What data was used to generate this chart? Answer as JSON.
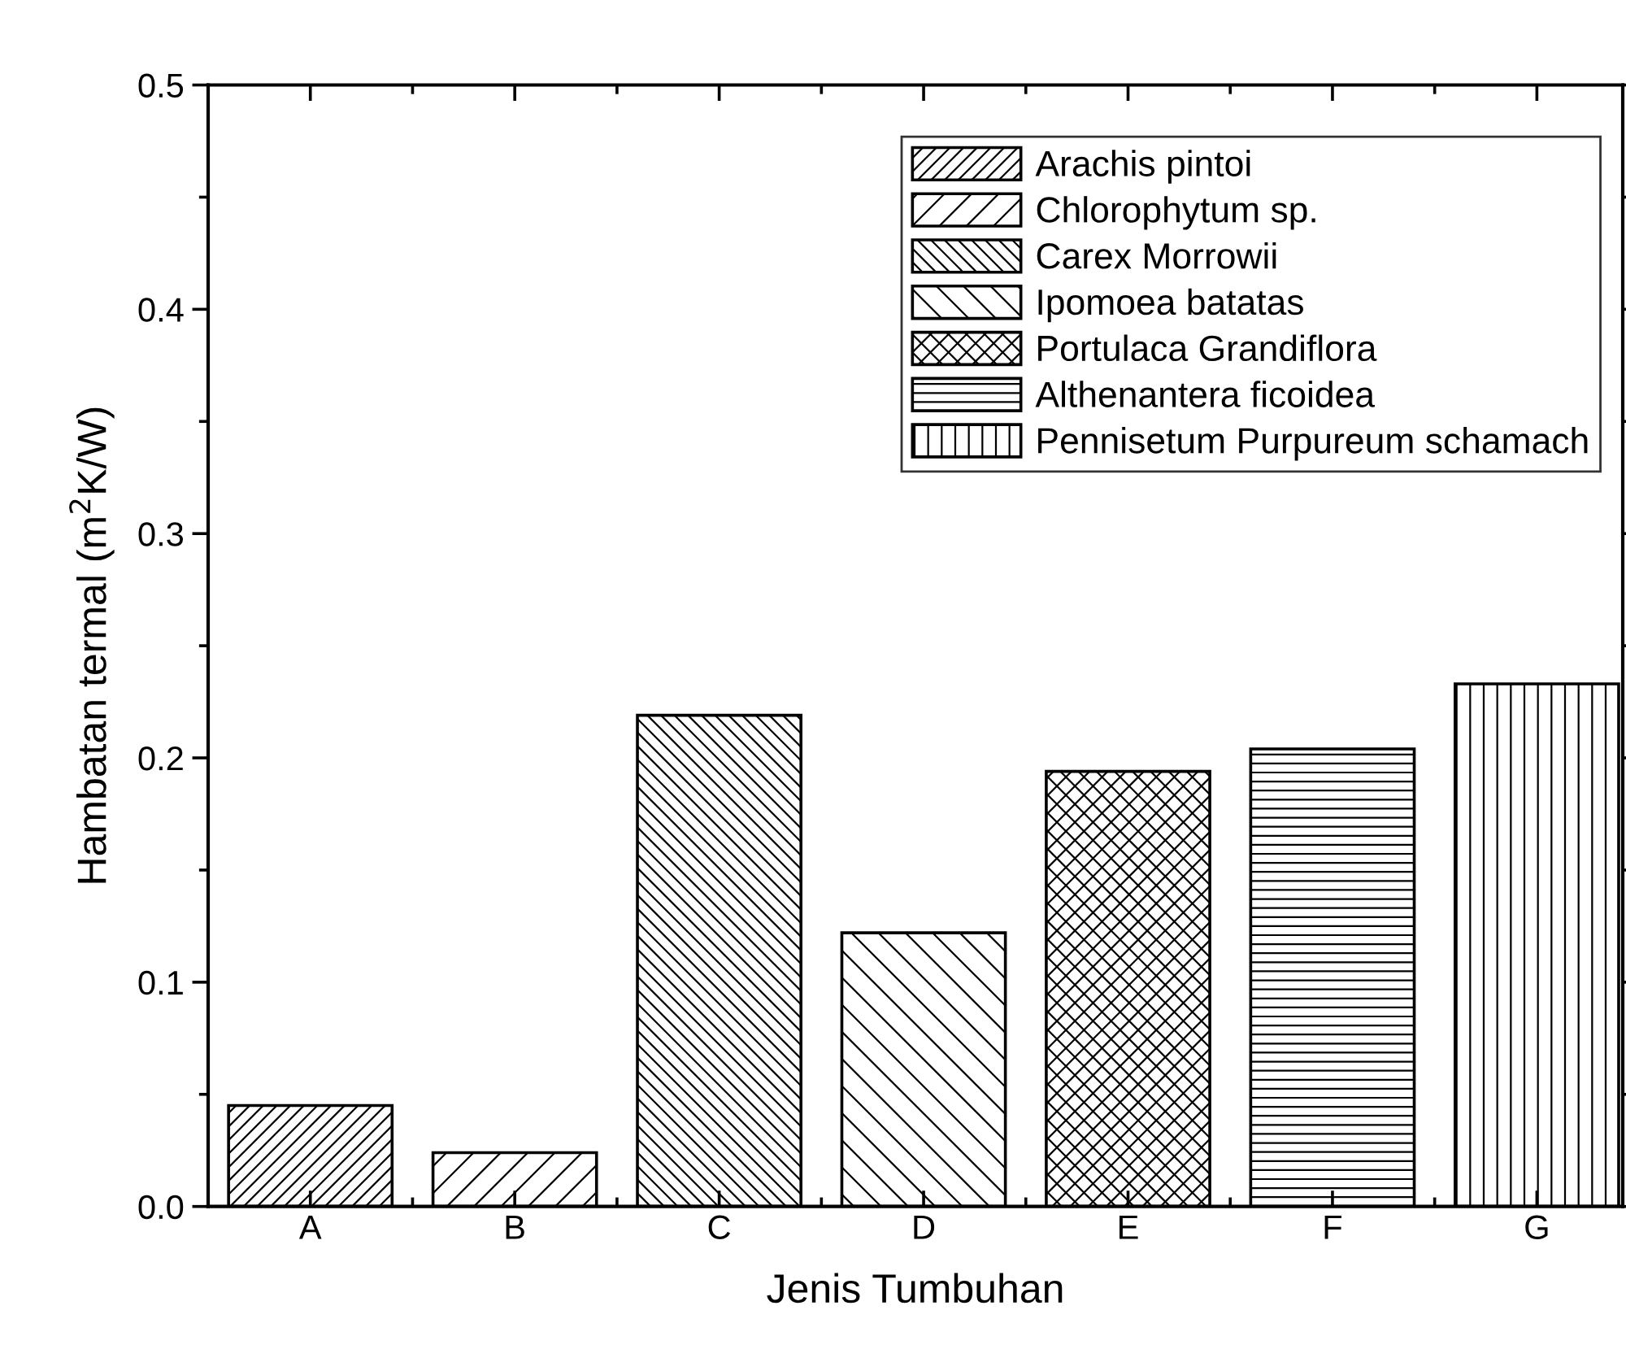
{
  "chart_data": {
    "type": "bar",
    "xlabel": "Jenis Tumbuhan",
    "ylabel": "Hambatan termal (m$^{2}$K/W)",
    "categories": [
      "A",
      "B",
      "C",
      "D",
      "E",
      "F",
      "G"
    ],
    "series": [
      {
        "name": "Arachis pintoi",
        "color": "#000000",
        "values": [
          0.045,
          null,
          null,
          null,
          null,
          null,
          null
        ]
      },
      {
        "name": "Chlorophytum sp.",
        "color": "#000000",
        "values": [
          null,
          0.024,
          null,
          null,
          null,
          null,
          null
        ]
      },
      {
        "name": "Carex Morrowii",
        "color": "#000000",
        "values": [
          null,
          null,
          0.219,
          null,
          null,
          null,
          null
        ]
      },
      {
        "name": "Ipomoea batatas",
        "color": "#000000",
        "values": [
          null,
          null,
          null,
          0.122,
          null,
          null,
          null
        ]
      },
      {
        "name": "Portulaca Grandiflora",
        "color": "#000000",
        "values": [
          null,
          null,
          null,
          null,
          0.194,
          null,
          null
        ]
      },
      {
        "name": "Althenantera ficoidea",
        "color": "#000000",
        "values": [
          null,
          null,
          null,
          null,
          null,
          0.204,
          null
        ]
      },
      {
        "name": "Pennisetum Purpureum schamach",
        "color": "#000000",
        "values": [
          null,
          null,
          null,
          null,
          null,
          null,
          0.233
        ]
      }
    ],
    "ylim": [
      0.0,
      0.5
    ],
    "yticks": [
      {
        "value": 0.0,
        "label": "0.0"
      },
      0.1,
      0.2,
      0.3,
      0.4,
      0.5
    ],
    "grid": false,
    "legend": "top right"
  }
}
